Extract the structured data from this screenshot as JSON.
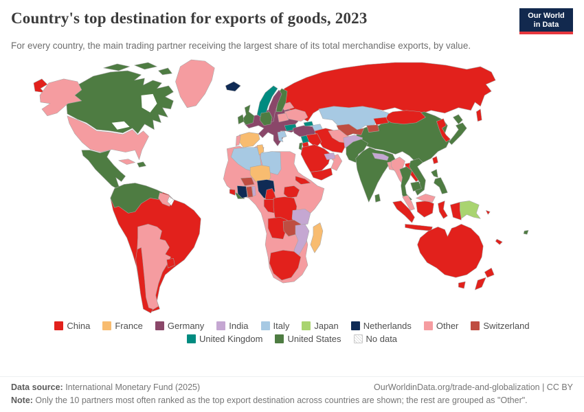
{
  "header": {
    "title": "Country's top destination for exports of goods, 2023",
    "subtitle": "For every country, the main trading partner receiving the largest share of its total merchandise exports, by value.",
    "logo": {
      "line1": "Our World",
      "line2": "in Data"
    }
  },
  "legend": {
    "rows": [
      [
        "China",
        "France",
        "Germany",
        "India",
        "Italy",
        "Japan",
        "Netherlands",
        "Other",
        "Switzerland"
      ],
      [
        "United Kingdom",
        "United States",
        "No data"
      ]
    ]
  },
  "footer": {
    "source_label": "Data source:",
    "source_text": " International Monetary Fund (2025)",
    "link": "OurWorldinData.org/trade-and-globalization | CC BY",
    "note_label": "Note:",
    "note_text": " Only the 10 partners most often ranked as the top export destination across countries are shown; the rest are grouped as \"Other\"."
  },
  "chart_data": {
    "type": "heatmap",
    "subtype": "choropleth-world-map",
    "title": "Country's top destination for exports of goods, 2023",
    "legend_position": "bottom",
    "categories": [
      "China",
      "France",
      "Germany",
      "India",
      "Italy",
      "Japan",
      "Netherlands",
      "Other",
      "Switzerland",
      "United Kingdom",
      "United States",
      "No data"
    ],
    "category_colors": {
      "China": "#e2211c",
      "France": "#f8bc70",
      "Germany": "#8a4769",
      "India": "#c5a7d2",
      "Italy": "#a7c9e3",
      "Japan": "#a9d470",
      "Netherlands": "#0f2b55",
      "Other": "#f59ca0",
      "Switzerland": "#bf4d41",
      "United Kingdom": "#008b80",
      "United States": "#4e7c42",
      "No data": "No data"
    },
    "country_to_partner": {
      "russia-east-tip": "China",
      "alaska": "Other",
      "canada": "United States",
      "canada-islands-1": "United States",
      "canada-islands-2": "United States",
      "canada-islands-3": "United States",
      "greenland": "Other",
      "usa": "Other",
      "mexico-central-america": "United States",
      "panama": "China",
      "cuba": "Other",
      "hispaniola": "United States",
      "south-america-base": "China",
      "colombia-venezuela-ecuador": "United States",
      "guyanas": "Other",
      "french-guiana": "No data",
      "bolivia-argentina-paraguay": "Other",
      "chile": "China",
      "uruguay": "China",
      "iceland": "Netherlands",
      "norway": "United Kingdom",
      "sweden": "Germany",
      "finland": "United States",
      "baltics": "Other",
      "united-kingdom": "United States",
      "ireland": "United States",
      "denmark": "Germany",
      "russia": "China",
      "sakhalin": "China",
      "central-europe": "Germany",
      "germany": "United States",
      "greece": "Italy",
      "bulgaria": "United Kingdom",
      "ukraine": "Other",
      "belarus": "Other",
      "spain": "France",
      "portugal": "Other",
      "turkey": "Germany",
      "georgia": "United Kingdom",
      "azerbaijan": "Italy",
      "syria": "United Kingdom",
      "israel": "United States",
      "jordan": "China",
      "iraq": "China",
      "saudi-arabia": "China",
      "yemen": "China",
      "oman": "Other",
      "uae": "India",
      "iran": "China",
      "kazakhstan": "Italy",
      "uzbekistan": "Switzerland",
      "turkmenistan": "Other",
      "kyrgyzstan": "China",
      "tajikistan": "Switzerland",
      "afghanistan": "India",
      "pakistan": "United States",
      "india": "United States",
      "nepal": "India",
      "bangladesh": "Other",
      "sri-lanka": "United States",
      "china": "United States",
      "mongolia": "China",
      "koreas": "China",
      "japan-hokkaido": "United States",
      "japan-honshu": "United States",
      "taiwan": "China",
      "myanmar": "Other",
      "thailand": "United States",
      "laos": "China",
      "vietnam": "United States",
      "cambodia": "United States",
      "malaysia-peninsula": "Other",
      "malaysia-borneo": "Other",
      "indonesia-sumatra": "China",
      "indonesia-java": "China",
      "indonesia-kalimantan": "China",
      "indonesia-sulawesi": "China",
      "indonesia-papua": "China",
      "papua-new-guinea": "Japan",
      "philippines-north": "United States",
      "philippines-south": "United States",
      "africa-base": "Other",
      "algeria": "Italy",
      "tunisia": "France",
      "libya": "Italy",
      "niger": "France",
      "eritrea": "China",
      "sierra-leone": "China",
      "liberia": "United States",
      "ivory-coast": "Netherlands",
      "burkina-faso": "Switzerland",
      "ghana": "Switzerland",
      "togo": "India",
      "nigeria": "Netherlands",
      "cameroon": "China",
      "south-sudan": "China",
      "congo-gabon": "China",
      "drc": "China",
      "tanzania": "India",
      "angola": "China",
      "zambia": "Switzerland",
      "mozambique": "India",
      "south-africa": "China",
      "madagascar": "France",
      "australia": "China",
      "tasmania": "China",
      "new-zealand-north": "China",
      "new-zealand-south": "China",
      "fiji": "United States",
      "new-caledonia": "China",
      "solomon-islands": "China"
    }
  }
}
